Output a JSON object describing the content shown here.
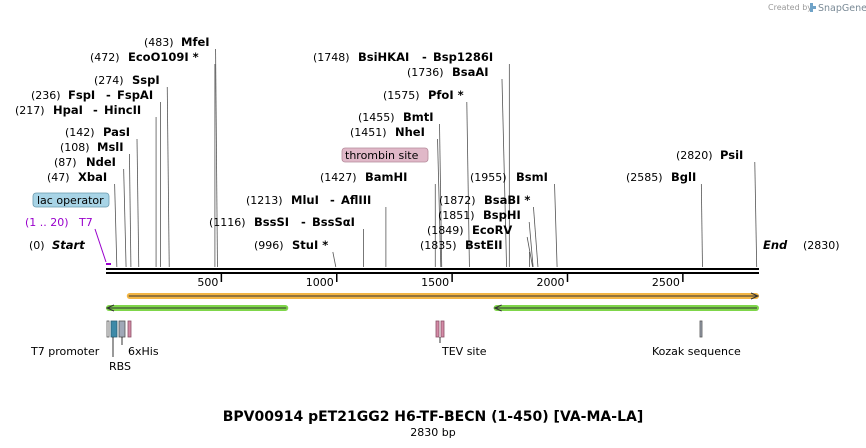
{
  "app": {
    "credit_prefix": "Created by",
    "brand": "SnapGene"
  },
  "map": {
    "title": "BPV00914 pET21GG2 H6-TF-BECN (1-450) [VA-MA-LA]",
    "length_label": "2830 bp",
    "total_bp": 2830,
    "start_label": "Start",
    "start_pos": "(0)",
    "end_label": "End",
    "end_pos": "(2830)",
    "ticks": [
      500,
      1000,
      1500,
      2000,
      2500
    ],
    "colors": {
      "primer": "#9900cc",
      "lac_operator_fill": "#a8d4e6",
      "thrombin_fill": "#e0b8c8",
      "orf_green": "#7fd64a",
      "orf_orange": "#f2b544",
      "cds_teal": "#3d8aa8",
      "gray_feature": "#a0a8b8",
      "pink_feature": "#d48aa6"
    }
  },
  "primer": {
    "range": "(1 .. 20)",
    "name": "T7"
  },
  "boxed_features": [
    {
      "name": "lac operator",
      "pos": 60
    },
    {
      "name": "thrombin site",
      "pos": 1440
    }
  ],
  "sites": [
    {
      "pos": "(483)",
      "name": "MfeI",
      "bp": 483
    },
    {
      "pos": "(472)",
      "name": "EcoO109I *",
      "bp": 472
    },
    {
      "pos": "(274)",
      "name": "SspI",
      "bp": 274
    },
    {
      "pos": "(236)",
      "name": "FspI",
      "name2": "FspAI",
      "bp": 236
    },
    {
      "pos": "(217)",
      "name": "HpaI",
      "name2": "HincII",
      "bp": 217
    },
    {
      "pos": "(142)",
      "name": "PasI",
      "bp": 142
    },
    {
      "pos": "(108)",
      "name": "MslI",
      "bp": 108
    },
    {
      "pos": "(87)",
      "name": "NdeI",
      "bp": 87
    },
    {
      "pos": "(47)",
      "name": "XbaI",
      "bp": 47
    },
    {
      "pos": "(1748)",
      "name": "BsiHKAI",
      "name2": "Bsp1286I",
      "bp": 1748
    },
    {
      "pos": "(1736)",
      "name": "BsaAI",
      "bp": 1736
    },
    {
      "pos": "(1575)",
      "name": "PfoI *",
      "bp": 1575
    },
    {
      "pos": "(1455)",
      "name": "BmtI",
      "bp": 1455
    },
    {
      "pos": "(1451)",
      "name": "NheI",
      "bp": 1451
    },
    {
      "pos": "(1427)",
      "name": "BamHI",
      "bp": 1427
    },
    {
      "pos": "(1955)",
      "name": "BsmI",
      "bp": 1955
    },
    {
      "pos": "(1872)",
      "name": "BsaBI *",
      "bp": 1872
    },
    {
      "pos": "(1851)",
      "name": "BspHI",
      "bp": 1851
    },
    {
      "pos": "(1849)",
      "name": "EcoRV",
      "bp": 1849
    },
    {
      "pos": "(1835)",
      "name": "BstEII",
      "bp": 1835
    },
    {
      "pos": "(1213)",
      "name": "MluI",
      "name2": "AflIII",
      "bp": 1213
    },
    {
      "pos": "(1116)",
      "name": "BssSI",
      "name2": "BssSαI",
      "bp": 1116
    },
    {
      "pos": "(996)",
      "name": "StuI *",
      "bp": 996
    },
    {
      "pos": "(2820)",
      "name": "PsiI",
      "bp": 2820
    },
    {
      "pos": "(2585)",
      "name": "BglI",
      "bp": 2585
    }
  ],
  "features_below": [
    {
      "name": "T7 promoter",
      "bp": 10
    },
    {
      "name": "6xHis",
      "bp": 90
    },
    {
      "name": "RBS",
      "bp": 45
    },
    {
      "name": "TEV site",
      "bp": 1450
    },
    {
      "name": "Kozak sequence",
      "bp": 2600
    }
  ],
  "orfs": [
    {
      "direction": "forward",
      "color": "orange",
      "start_bp": 90,
      "end_bp": 2830
    },
    {
      "direction": "reverse",
      "color": "green",
      "start_bp": 0,
      "end_bp": 790
    },
    {
      "direction": "reverse",
      "color": "green",
      "start_bp": 1680,
      "end_bp": 2830
    }
  ]
}
